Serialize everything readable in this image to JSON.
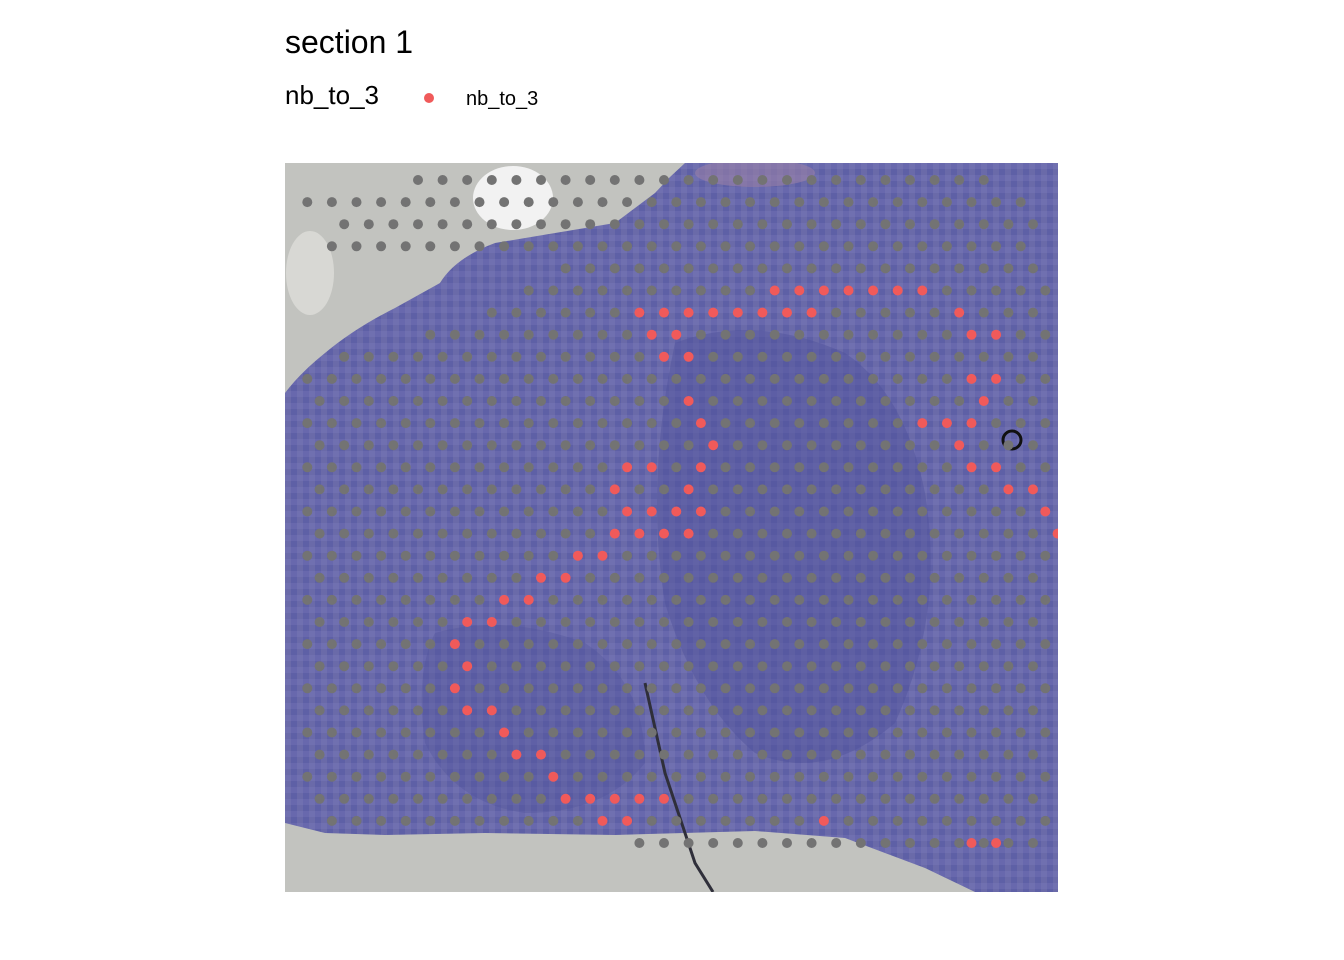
{
  "title": "section 1",
  "legend": {
    "title": "nb_to_3",
    "entries": [
      {
        "label": "nb_to_3",
        "color": "#f05a5a"
      }
    ]
  },
  "colors": {
    "highlight": "#f05a5a",
    "background_spot": "#737373",
    "tissue": "#6a6aac",
    "tissue_dark": "#50549e",
    "slide": "#c2c3bf",
    "hole": "#f2f2f2"
  },
  "chart_data": {
    "type": "scatter",
    "title": "section 1",
    "xlabel": "",
    "ylabel": "",
    "grid": false,
    "legend_position": "top",
    "background": "tissue image",
    "series": [
      {
        "name": "nb_to_3",
        "color": "#f05a5a",
        "points": [
          [
            369,
            5
          ],
          [
            371,
            5
          ],
          [
            373,
            5
          ],
          [
            375,
            5
          ],
          [
            377,
            5
          ],
          [
            379,
            5
          ],
          [
            381,
            5
          ],
          [
            358,
            6
          ],
          [
            360,
            6
          ],
          [
            362,
            6
          ],
          [
            364,
            6
          ],
          [
            366,
            6
          ],
          [
            368,
            6
          ],
          [
            370,
            6
          ],
          [
            372,
            6
          ],
          [
            384,
            6
          ],
          [
            359,
            7
          ],
          [
            361,
            7
          ],
          [
            385,
            7
          ],
          [
            387,
            7
          ],
          [
            360,
            8
          ],
          [
            362,
            8
          ],
          [
            385,
            9
          ],
          [
            387,
            9
          ],
          [
            362,
            10
          ],
          [
            386,
            10
          ],
          [
            363,
            11
          ],
          [
            381,
            11
          ],
          [
            383,
            11
          ],
          [
            385,
            11
          ],
          [
            364,
            12
          ],
          [
            384,
            12
          ],
          [
            357,
            13
          ],
          [
            359,
            13
          ],
          [
            363,
            13
          ],
          [
            385,
            13
          ],
          [
            387,
            13
          ],
          [
            356,
            14
          ],
          [
            362,
            14
          ],
          [
            388,
            14
          ],
          [
            390,
            14
          ],
          [
            357,
            15
          ],
          [
            359,
            15
          ],
          [
            361,
            15
          ],
          [
            363,
            15
          ],
          [
            391,
            15
          ],
          [
            356,
            16
          ],
          [
            358,
            16
          ],
          [
            360,
            16
          ],
          [
            362,
            16
          ],
          [
            392,
            16
          ],
          [
            353,
            17
          ],
          [
            355,
            17
          ],
          [
            393,
            17
          ],
          [
            350,
            18
          ],
          [
            352,
            18
          ],
          [
            394,
            18
          ],
          [
            396,
            18
          ],
          [
            347,
            19
          ],
          [
            349,
            19
          ],
          [
            397,
            19
          ],
          [
            344,
            20
          ],
          [
            346,
            20
          ],
          [
            343,
            21
          ],
          [
            344,
            22
          ],
          [
            343,
            23
          ],
          [
            344,
            24
          ],
          [
            346,
            24
          ],
          [
            347,
            25
          ],
          [
            348,
            26
          ],
          [
            350,
            26
          ],
          [
            351,
            27
          ],
          [
            352,
            28
          ],
          [
            354,
            28
          ],
          [
            356,
            28
          ],
          [
            358,
            28
          ],
          [
            360,
            28
          ],
          [
            355,
            29
          ],
          [
            357,
            29
          ],
          [
            373,
            29
          ],
          [
            385,
            30
          ],
          [
            387,
            30
          ]
        ]
      }
    ],
    "grid_spots": {
      "color": "#737373",
      "rows": 31,
      "row_cols": [
        [
          4,
          27
        ],
        [
          0,
          29
        ],
        [
          1,
          30
        ],
        [
          1,
          29
        ],
        [
          10,
          30
        ],
        [
          9,
          30
        ],
        [
          7,
          30
        ],
        [
          5,
          30
        ],
        [
          1,
          30
        ],
        [
          0,
          30
        ],
        [
          0,
          30
        ],
        [
          0,
          30
        ],
        [
          0,
          30
        ],
        [
          0,
          30
        ],
        [
          0,
          30
        ],
        [
          0,
          30
        ],
        [
          0,
          30
        ],
        [
          0,
          30
        ],
        [
          0,
          30
        ],
        [
          0,
          30
        ],
        [
          0,
          30
        ],
        [
          0,
          30
        ],
        [
          0,
          30
        ],
        [
          0,
          30
        ],
        [
          0,
          30
        ],
        [
          0,
          30
        ],
        [
          0,
          30
        ],
        [
          0,
          30
        ],
        [
          0,
          30
        ],
        [
          1,
          30
        ],
        [
          13,
          30
        ]
      ]
    }
  }
}
